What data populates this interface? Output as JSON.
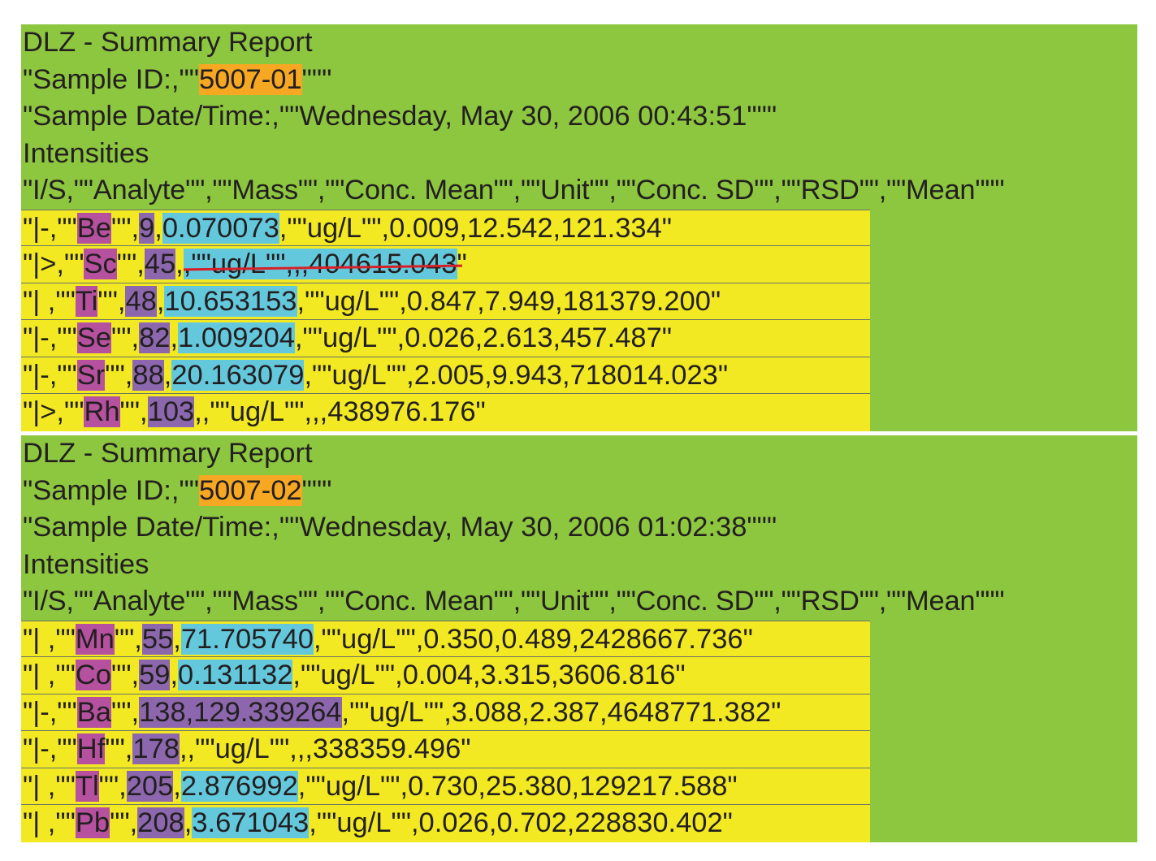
{
  "colors": {
    "header_bg": "#8dc63f",
    "row_bg": "#f2e922",
    "sample_id_highlight": "#f7a823",
    "analyte_highlight": "#b5519f",
    "mass_highlight": "#8c67ad",
    "conc_highlight": "#64c8dc",
    "strikethrough": "#d62027"
  },
  "reports": [
    {
      "title": "DLZ - Summary Report",
      "sample_id_prefix": "\"Sample ID:,\"\"",
      "sample_id": "5007-01",
      "sample_id_suffix": "\"\"\"",
      "date_line": "\"Sample Date/Time:,\"\"Wednesday, May 30, 2006 00:43:51\"\"\"",
      "section": "Intensities",
      "columns": "\"I/S,\"\"Analyte\"\",\"\"Mass\"\",\"\"Conc. Mean\"\",\"\"Unit\"\",\"\"Conc. SD\"\",\"\"RSD\"\",\"\"Mean\"\"\"",
      "rows": [
        {
          "is": "\"|-,\"\"",
          "analyte": "Be",
          "sep1": "\"\",",
          "mass": "9",
          "sep2": ",",
          "conc": "0.070073",
          "rest": ",\"\"ug/L\"\",0.009,12.542,121.334\""
        },
        {
          "is": "\"|>,\"\"",
          "analyte": "Sc",
          "sep1": "\"\",",
          "mass": "45",
          "sep2": ",",
          "conc": ",\"\"ug/L\"\",,,404615.043",
          "rest": "\""
        },
        {
          "is": "\"| ,\"\"",
          "analyte": "Ti",
          "sep1": "\"\",",
          "mass": "48",
          "sep2": ",",
          "conc": "10.653153",
          "rest": ",\"\"ug/L\"\",0.847,7.949,181379.200\""
        },
        {
          "is": "\"|-,\"\"",
          "analyte": "Se",
          "sep1": "\"\",",
          "mass": "82",
          "sep2": ",",
          "conc": "1.009204",
          "rest": ",\"\"ug/L\"\",0.026,2.613,457.487\""
        },
        {
          "is": "\"|-,\"\"",
          "analyte": "Sr",
          "sep1": "\"\",",
          "mass": "88",
          "sep2": ",",
          "conc": "20.163079",
          "rest": ",\"\"ug/L\"\",2.005,9.943,718014.023\""
        },
        {
          "is": "\"|>,\"\"",
          "analyte": "Rh",
          "sep1": "\"\",",
          "mass": "103",
          "sep2": "",
          "conc": "",
          "rest": ",,\"\"ug/L\"\",,,438976.176\""
        }
      ]
    },
    {
      "title": "DLZ - Summary Report",
      "sample_id_prefix": "\"Sample ID:,\"\"",
      "sample_id": "5007-02",
      "sample_id_suffix": "\"\"\"",
      "date_line": "\"Sample Date/Time:,\"\"Wednesday, May 30, 2006 01:02:38\"\"\"",
      "section": "Intensities",
      "columns": "\"I/S,\"\"Analyte\"\",\"\"Mass\"\",\"\"Conc. Mean\"\",\"\"Unit\"\",\"\"Conc. SD\"\",\"\"RSD\"\",\"\"Mean\"\"\"",
      "rows": [
        {
          "is": "\"| ,\"\"",
          "analyte": "Mn",
          "sep1": "\"\",",
          "mass": "55",
          "sep2": ",",
          "conc": "71.705740",
          "rest": ",\"\"ug/L\"\",0.350,0.489,2428667.736\""
        },
        {
          "is": "\"| ,\"\"",
          "analyte": "Co",
          "sep1": "\"\",",
          "mass": "59",
          "sep2": ",",
          "conc": "0.131132",
          "rest": ",\"\"ug/L\"\",0.004,3.315,3606.816\""
        },
        {
          "is": "\"|-,\"\"",
          "analyte": "Ba",
          "sep1": "\"\",",
          "mass": "138,129.339264",
          "sep2": "",
          "conc": "",
          "rest": ",\"\"ug/L\"\",3.088,2.387,4648771.382\""
        },
        {
          "is": "\"|-,\"\"",
          "analyte": "Hf",
          "sep1": "\"\",",
          "mass": "178",
          "sep2": "",
          "conc": "",
          "rest": ",,\"\"ug/L\"\",,,338359.496\""
        },
        {
          "is": "\"| ,\"\"",
          "analyte": "Tl",
          "sep1": "\"\",",
          "mass": "205",
          "sep2": ",",
          "conc": "2.876992",
          "rest": ",\"\"ug/L\"\",0.730,25.380,129217.588\""
        },
        {
          "is": "\"| ,\"\"",
          "analyte": "Pb",
          "sep1": "\"\",",
          "mass": "208",
          "sep2": ",",
          "conc": "3.671043",
          "rest": ",\"\"ug/L\"\",0.026,0.702,228830.402\""
        }
      ]
    }
  ]
}
